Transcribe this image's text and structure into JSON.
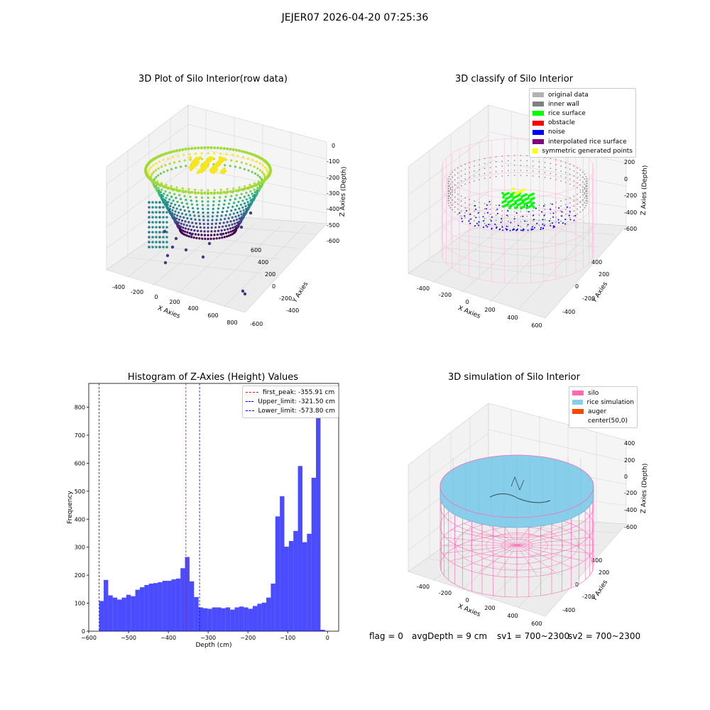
{
  "suptitle": "JEJER07 2026-04-20 07:25:36",
  "chart_data": [
    {
      "type": "scatter",
      "title": "3D Plot of Silo Interior(row data)",
      "xlabel": "X Axies",
      "ylabel": "Y Axies",
      "zlabel": "Z Axies (Depth)",
      "xticks": [
        "-400",
        "-200",
        "0",
        "200",
        "400",
        "600",
        "800"
      ],
      "yticks": [
        "600",
        "400",
        "200",
        "0",
        "-200",
        "-400",
        "-600"
      ],
      "zticks": [
        "0",
        "-100",
        "-200",
        "-300",
        "-400",
        "-500",
        "-600"
      ],
      "colormap": "viridis"
    },
    {
      "type": "scatter",
      "title": "3D classify of Silo Interior",
      "xlabel": "X Axies",
      "ylabel": "Y Axies",
      "zlabel": "Z Axies (Depth)",
      "xticks": [
        "-400",
        "-200",
        "0",
        "200",
        "400",
        "600"
      ],
      "yticks": [
        "400",
        "200",
        "0",
        "-200",
        "-400"
      ],
      "zticks": [
        "200",
        "0",
        "-200",
        "-400",
        "-600"
      ],
      "legend": [
        {
          "label": "original data",
          "color": "#b3b3b3"
        },
        {
          "label": "inner wall",
          "color": "#808080"
        },
        {
          "label": "rice surface",
          "color": "#00ff00"
        },
        {
          "label": "obstacle",
          "color": "#ff0000"
        },
        {
          "label": "noise",
          "color": "#0000ff"
        },
        {
          "label": "interpolated rice surface",
          "color": "#800080"
        },
        {
          "label": "symmetric generated points",
          "color": "#ffff00"
        }
      ]
    },
    {
      "type": "bar",
      "title": "Histogram of Z-Axies (Height) Values",
      "xlabel": "Depth (cm)",
      "ylabel": "Frequency",
      "xlim": [
        -600,
        28
      ],
      "ylim": [
        0,
        885
      ],
      "xticks": [
        -600,
        -500,
        -400,
        -300,
        -200,
        -100,
        0
      ],
      "xtick_labels": [
        "−600",
        "−500",
        "−400",
        "−300",
        "−200",
        "−100",
        "0"
      ],
      "yticks": [
        0,
        100,
        200,
        300,
        400,
        500,
        600,
        700,
        800
      ],
      "bin_start": -573.8,
      "bin_width": 11.35,
      "values": [
        108,
        183,
        128,
        120,
        113,
        120,
        130,
        125,
        148,
        157,
        165,
        170,
        172,
        175,
        180,
        180,
        185,
        188,
        225,
        265,
        178,
        122,
        85,
        82,
        80,
        85,
        85,
        82,
        85,
        77,
        85,
        88,
        85,
        80,
        90,
        98,
        102,
        120,
        170,
        410,
        482,
        302,
        322,
        358,
        590,
        318,
        348,
        548,
        845,
        5
      ],
      "vlines": [
        {
          "label": "first_peak: -355.91 cm",
          "x": -355.91,
          "color": "#ff0000"
        },
        {
          "label": "Upper_limit: -321.50 cm",
          "x": -321.5,
          "color": "#0000ff"
        },
        {
          "label": "Lower_limit: -573.80 cm",
          "x": -573.8,
          "color": "#0000ff"
        }
      ],
      "bar_color": "#0000ff"
    },
    {
      "type": "scatter",
      "title": "3D simulation of Silo Interior",
      "xlabel": "X Axies",
      "ylabel": "Y Axies",
      "zlabel": "Z Axies (Depth)",
      "xticks": [
        "-400",
        "-200",
        "0",
        "200",
        "400",
        "600"
      ],
      "yticks": [
        "400",
        "200",
        "0",
        "-200",
        "-400"
      ],
      "zticks": [
        "400",
        "200",
        "0",
        "-200",
        "-400",
        "-600"
      ],
      "legend": [
        {
          "label": "silo",
          "color": "#ff69b4"
        },
        {
          "label": "rice simulation",
          "color": "#87ceeb"
        },
        {
          "label": "auger",
          "color": "#ff4500"
        },
        {
          "label": "center(50,0)",
          "color": ""
        }
      ]
    }
  ],
  "footer": {
    "flag": "flag = 0",
    "avg": "avgDepth = 9 cm",
    "sv1": "sv1 = 700~2300",
    "sv2": "sv2 = 700~2300"
  }
}
